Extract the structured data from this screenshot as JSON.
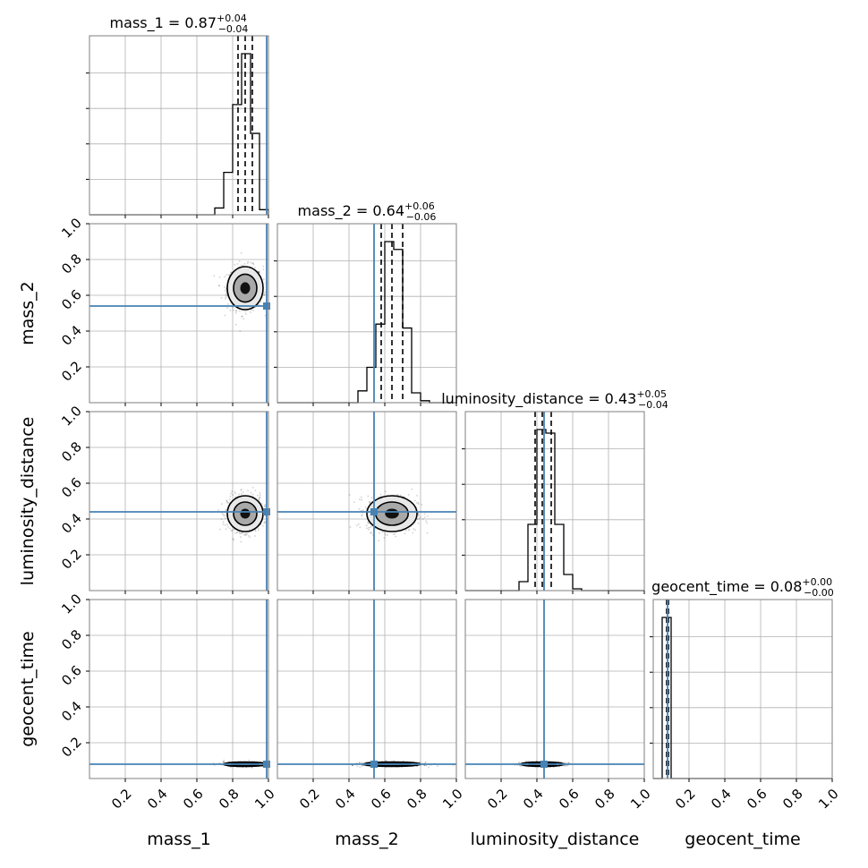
{
  "chart_data": {
    "type": "corner",
    "parameters": [
      "mass_1",
      "mass_2",
      "luminosity_distance",
      "geocent_time"
    ],
    "axis_labels": [
      "mass_1",
      "mass_2",
      "luminosity_distance",
      "geocent_time"
    ],
    "ranges": [
      [
        0,
        1
      ],
      [
        0,
        1
      ],
      [
        0,
        1
      ],
      [
        0,
        1
      ]
    ],
    "tick_values": [
      0.2,
      0.4,
      0.6,
      0.8,
      1.0
    ],
    "tick_labels": [
      "0.2",
      "0.4",
      "0.6",
      "0.8",
      "1.0"
    ],
    "truths": [
      0.99,
      0.54,
      0.44,
      0.08
    ],
    "truth_color": "#4682b4",
    "grid": true,
    "titles": [
      {
        "text": "mass_1 = 0.87",
        "sup": "+0.04",
        "sub": "−0.04"
      },
      {
        "text": "mass_2 = 0.64",
        "sup": "+0.06",
        "sub": "−0.06"
      },
      {
        "text": "luminosity_distance = 0.43",
        "sup": "+0.05",
        "sub": "−0.04"
      },
      {
        "text": "geocent_time = 0.08",
        "sup": "+0.00",
        "sub": "−0.00"
      }
    ],
    "quantiles": [
      [
        0.83,
        0.87,
        0.91
      ],
      [
        0.58,
        0.64,
        0.7
      ],
      [
        0.39,
        0.43,
        0.48
      ],
      [
        0.075,
        0.08,
        0.085
      ]
    ],
    "histograms": [
      {
        "bin_edges": [
          0.7,
          0.75,
          0.8,
          0.85,
          0.9,
          0.95,
          1.0
        ],
        "counts": [
          0.04,
          0.25,
          0.65,
          0.95,
          0.48,
          0.03
        ]
      },
      {
        "bin_edges": [
          0.45,
          0.5,
          0.55,
          0.6,
          0.65,
          0.7,
          0.75,
          0.8,
          0.85
        ],
        "counts": [
          0.06,
          0.18,
          0.4,
          0.82,
          0.78,
          0.38,
          0.05,
          0.01
        ]
      },
      {
        "bin_edges": [
          0.3,
          0.35,
          0.4,
          0.45,
          0.5,
          0.55,
          0.6,
          0.65
        ],
        "counts": [
          0.05,
          0.37,
          0.9,
          0.88,
          0.37,
          0.09,
          0.01
        ]
      },
      {
        "bin_edges": [
          0.05,
          0.075,
          0.1
        ],
        "counts": [
          0.9,
          0.9
        ]
      }
    ],
    "panels_2d": [
      {
        "x_param": "mass_1",
        "y_param": "mass_2",
        "center": [
          0.87,
          0.64
        ],
        "spread": [
          0.05,
          0.06
        ]
      },
      {
        "x_param": "mass_1",
        "y_param": "luminosity_distance",
        "center": [
          0.87,
          0.43
        ],
        "spread": [
          0.05,
          0.05
        ]
      },
      {
        "x_param": "mass_2",
        "y_param": "luminosity_distance",
        "center": [
          0.64,
          0.43
        ],
        "spread": [
          0.07,
          0.05
        ]
      },
      {
        "x_param": "mass_1",
        "y_param": "geocent_time",
        "center": [
          0.87,
          0.08
        ],
        "spread": [
          0.06,
          0.006
        ]
      },
      {
        "x_param": "mass_2",
        "y_param": "geocent_time",
        "center": [
          0.64,
          0.08
        ],
        "spread": [
          0.08,
          0.006
        ]
      },
      {
        "x_param": "luminosity_distance",
        "y_param": "geocent_time",
        "center": [
          0.43,
          0.08
        ],
        "spread": [
          0.06,
          0.006
        ]
      }
    ]
  }
}
